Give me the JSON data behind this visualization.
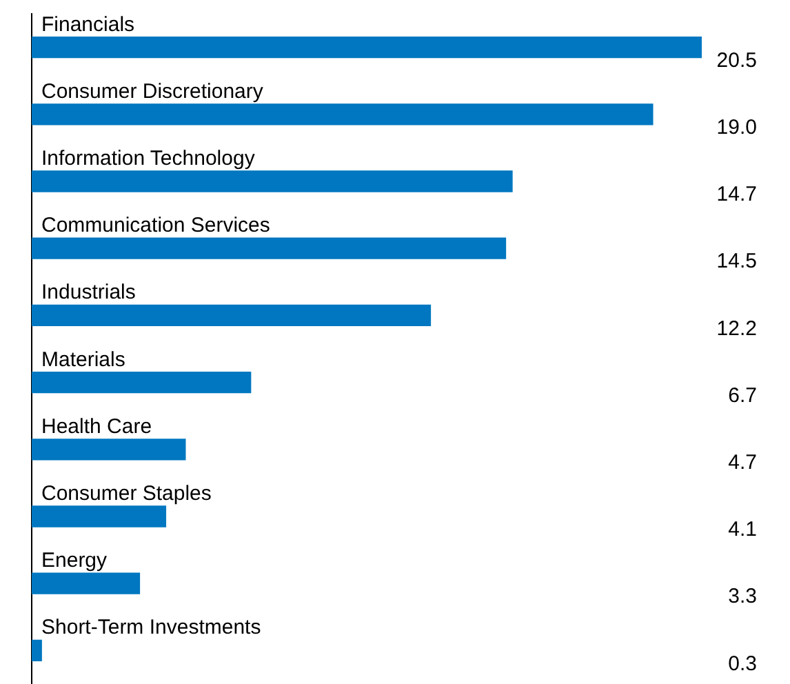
{
  "chart_data": {
    "type": "bar",
    "orientation": "horizontal",
    "categories": [
      "Financials",
      "Consumer Discretionary",
      "Information Technology",
      "Communication Services",
      "Industrials",
      "Materials",
      "Health Care",
      "Consumer Staples",
      "Energy",
      "Short-Term Investments"
    ],
    "values": [
      20.5,
      19.0,
      14.7,
      14.5,
      12.2,
      6.7,
      4.7,
      4.1,
      3.3,
      0.3
    ],
    "value_labels": [
      "20.5",
      "19.0",
      "14.7",
      "14.5",
      "12.2",
      "6.7",
      "4.7",
      "4.1",
      "3.3",
      "0.3"
    ],
    "color": "#0077c0",
    "legend": false
  }
}
